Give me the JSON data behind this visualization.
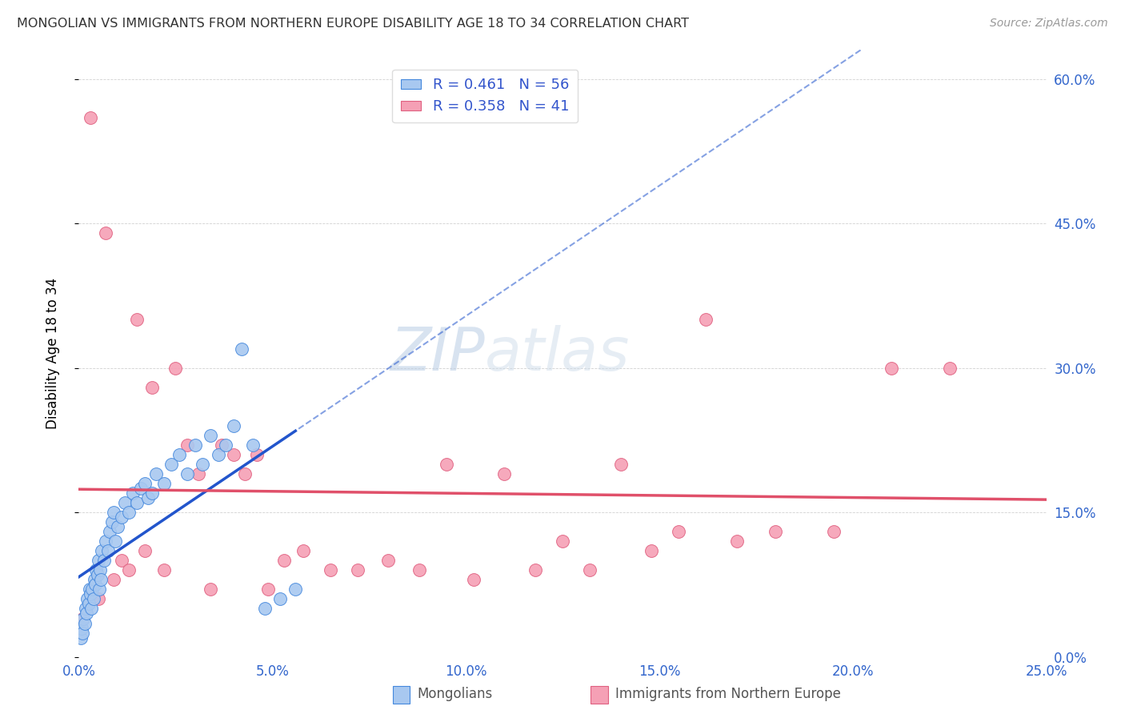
{
  "title": "MONGOLIAN VS IMMIGRANTS FROM NORTHERN EUROPE DISABILITY AGE 18 TO 34 CORRELATION CHART",
  "source": "Source: ZipAtlas.com",
  "xlabel_ticks": [
    "0.0%",
    "5.0%",
    "10.0%",
    "15.0%",
    "20.0%",
    "25.0%"
  ],
  "xlabel_vals": [
    0.0,
    5.0,
    10.0,
    15.0,
    20.0,
    25.0
  ],
  "ylabel_ticks": [
    "0.0%",
    "15.0%",
    "30.0%",
    "45.0%",
    "60.0%"
  ],
  "ylabel_vals": [
    0.0,
    15.0,
    30.0,
    45.0,
    60.0
  ],
  "ylabel_label": "Disability Age 18 to 34",
  "xlim": [
    0.0,
    25.0
  ],
  "ylim": [
    0.0,
    63.0
  ],
  "mongolian_R": 0.461,
  "mongolian_N": 56,
  "immigrant_R": 0.358,
  "immigrant_N": 41,
  "mongolian_color": "#a8c8f0",
  "mongolian_edge_color": "#4488dd",
  "mongolian_line_color": "#2255cc",
  "immigrant_color": "#f5a0b5",
  "immigrant_edge_color": "#e06080",
  "immigrant_line_color": "#e0506a",
  "watermark": "ZIPatlas",
  "watermark_color": "#c5d8ee",
  "mon_x": [
    0.05,
    0.08,
    0.1,
    0.12,
    0.15,
    0.18,
    0.2,
    0.22,
    0.25,
    0.28,
    0.3,
    0.32,
    0.35,
    0.38,
    0.4,
    0.42,
    0.45,
    0.48,
    0.5,
    0.52,
    0.55,
    0.58,
    0.6,
    0.65,
    0.7,
    0.75,
    0.8,
    0.85,
    0.9,
    0.95,
    1.0,
    1.1,
    1.2,
    1.3,
    1.4,
    1.5,
    1.6,
    1.7,
    1.8,
    1.9,
    2.0,
    2.2,
    2.4,
    2.6,
    2.8,
    3.0,
    3.2,
    3.4,
    3.6,
    3.8,
    4.0,
    4.2,
    4.5,
    4.8,
    5.2,
    5.6
  ],
  "mon_y": [
    2.0,
    3.0,
    2.5,
    4.0,
    3.5,
    5.0,
    4.5,
    6.0,
    5.5,
    7.0,
    6.5,
    5.0,
    7.0,
    6.0,
    8.0,
    7.5,
    9.0,
    8.5,
    10.0,
    7.0,
    9.0,
    8.0,
    11.0,
    10.0,
    12.0,
    11.0,
    13.0,
    14.0,
    15.0,
    12.0,
    13.5,
    14.5,
    16.0,
    15.0,
    17.0,
    16.0,
    17.5,
    18.0,
    16.5,
    17.0,
    19.0,
    18.0,
    20.0,
    21.0,
    19.0,
    22.0,
    20.0,
    23.0,
    21.0,
    22.0,
    24.0,
    32.0,
    22.0,
    5.0,
    6.0,
    7.0
  ],
  "imm_x": [
    0.1,
    0.3,
    0.5,
    0.7,
    0.9,
    1.1,
    1.3,
    1.5,
    1.7,
    1.9,
    2.2,
    2.5,
    2.8,
    3.1,
    3.4,
    3.7,
    4.0,
    4.3,
    4.6,
    4.9,
    5.3,
    5.8,
    6.5,
    7.2,
    8.0,
    8.8,
    9.5,
    10.2,
    11.0,
    11.8,
    12.5,
    13.2,
    14.0,
    14.8,
    15.5,
    16.2,
    17.0,
    18.0,
    19.5,
    21.0,
    22.5
  ],
  "imm_y": [
    4.0,
    56.0,
    6.0,
    44.0,
    8.0,
    10.0,
    9.0,
    35.0,
    11.0,
    28.0,
    9.0,
    30.0,
    22.0,
    19.0,
    7.0,
    22.0,
    21.0,
    19.0,
    21.0,
    7.0,
    10.0,
    11.0,
    9.0,
    9.0,
    10.0,
    9.0,
    20.0,
    8.0,
    19.0,
    9.0,
    12.0,
    9.0,
    20.0,
    11.0,
    13.0,
    35.0,
    12.0,
    13.0,
    13.0,
    30.0,
    30.0
  ]
}
